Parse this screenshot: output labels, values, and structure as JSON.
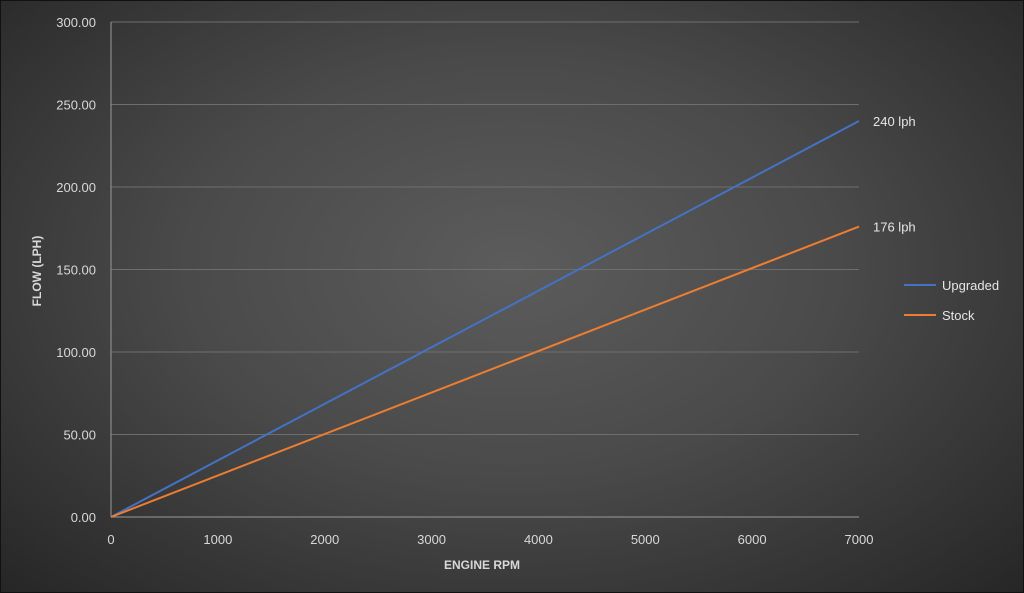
{
  "chart_data": {
    "type": "line",
    "title": "",
    "xlabel": "ENGINE RPM",
    "ylabel": "FLOW (LPH)",
    "x": [
      0,
      7000
    ],
    "xlim": [
      0,
      7000
    ],
    "ylim": [
      0,
      300
    ],
    "xticks": [
      "0",
      "1000",
      "2000",
      "3000",
      "4000",
      "5000",
      "6000",
      "7000"
    ],
    "yticks": [
      "0.00",
      "50.00",
      "100.00",
      "150.00",
      "200.00",
      "250.00",
      "300.00"
    ],
    "grid": "horizontal",
    "legend": "right",
    "series": [
      {
        "name": "Upgraded",
        "color": "#4472c4",
        "values": [
          0,
          240
        ],
        "end_label": "240 lph"
      },
      {
        "name": "Stock",
        "color": "#ed7d31",
        "values": [
          0,
          176
        ],
        "end_label": "176 lph"
      }
    ]
  }
}
